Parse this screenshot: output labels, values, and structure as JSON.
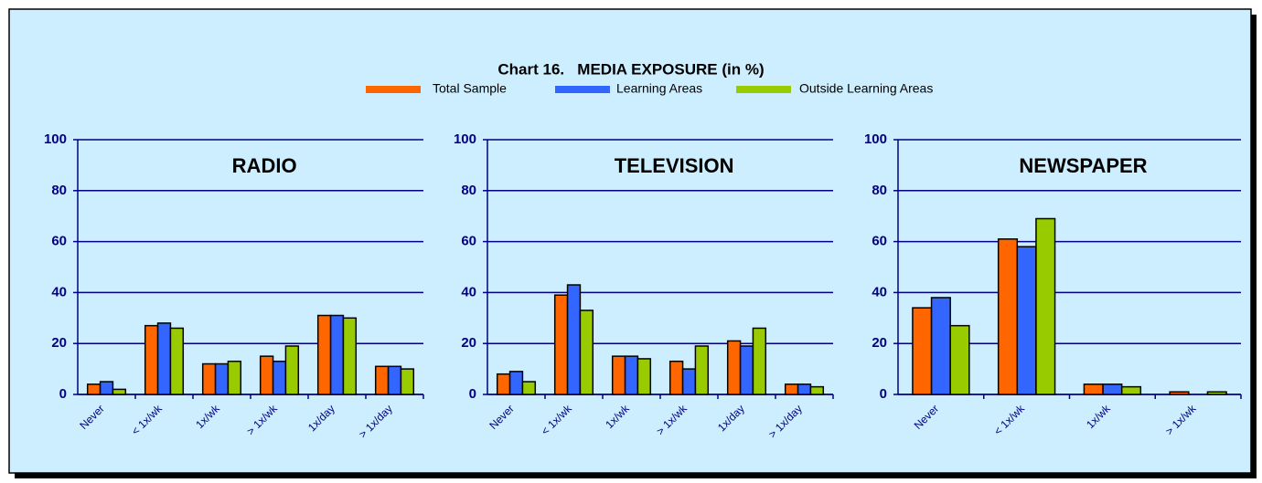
{
  "header": {
    "title": "Chart 16.   MEDIA EXPOSURE (in %)"
  },
  "chart_data": [
    {
      "type": "bar",
      "title": "RADIO",
      "categories": [
        "Never",
        "< 1x/wk",
        "1x/wk",
        "> 1x/wk",
        "1x/day",
        "> 1x/day"
      ],
      "series": [
        {
          "name": "Total Sample",
          "color": "#ff6600",
          "values": [
            4,
            27,
            12,
            15,
            31,
            11
          ]
        },
        {
          "name": "Learning Areas",
          "color": "#3366ff",
          "values": [
            5,
            28,
            12,
            13,
            31,
            11
          ]
        },
        {
          "name": "Outside Learning Areas",
          "color": "#99cc00",
          "values": [
            2,
            26,
            13,
            19,
            30,
            10
          ]
        }
      ],
      "ylim": [
        0,
        100
      ],
      "yticks": [
        0,
        20,
        40,
        60,
        80,
        100
      ],
      "grid": true
    },
    {
      "type": "bar",
      "title": "TELEVISION",
      "categories": [
        "Never",
        "< 1x/wk",
        "1x/wk",
        "> 1x/wk",
        "1x/day",
        "> 1x/day"
      ],
      "series": [
        {
          "name": "Total Sample",
          "color": "#ff6600",
          "values": [
            8,
            39,
            15,
            13,
            21,
            4
          ]
        },
        {
          "name": "Learning Areas",
          "color": "#3366ff",
          "values": [
            9,
            43,
            15,
            10,
            19,
            4
          ]
        },
        {
          "name": "Outside Learning Areas",
          "color": "#99cc00",
          "values": [
            5,
            33,
            14,
            19,
            26,
            3
          ]
        }
      ],
      "ylim": [
        0,
        100
      ],
      "yticks": [
        0,
        20,
        40,
        60,
        80,
        100
      ],
      "grid": true
    },
    {
      "type": "bar",
      "title": "NEWSPAPER",
      "categories": [
        "Never",
        "< 1x/wk",
        "1x/wk",
        "> 1x/wk"
      ],
      "series": [
        {
          "name": "Total Sample",
          "color": "#ff6600",
          "values": [
            34,
            61,
            4,
            1
          ]
        },
        {
          "name": "Learning Areas",
          "color": "#3366ff",
          "values": [
            38,
            58,
            4,
            0
          ]
        },
        {
          "name": "Outside Learning Areas",
          "color": "#99cc00",
          "values": [
            27,
            69,
            3,
            1
          ]
        }
      ],
      "ylim": [
        0,
        100
      ],
      "yticks": [
        0,
        20,
        40,
        60,
        80,
        100
      ],
      "grid": true
    }
  ]
}
